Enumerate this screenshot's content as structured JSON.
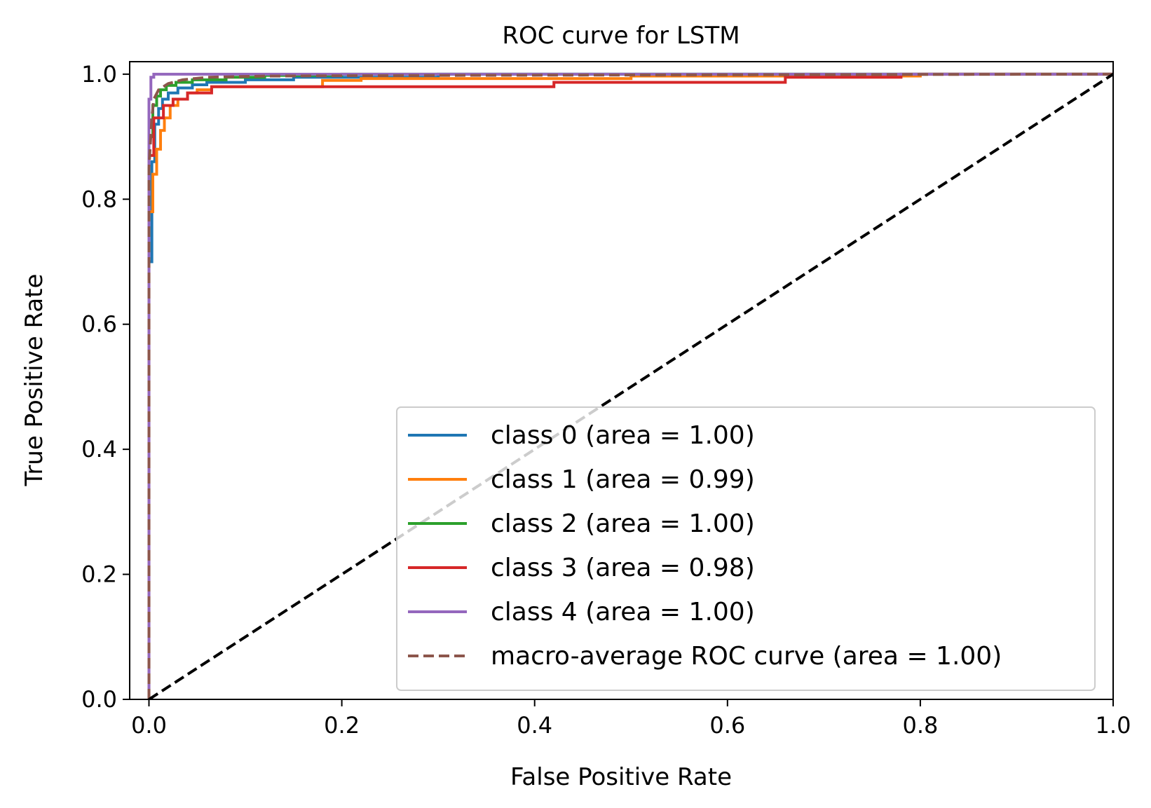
{
  "chart_data": {
    "type": "line",
    "title": "ROC curve for LSTM",
    "xlabel": "False Positive Rate",
    "ylabel": "True Positive Rate",
    "xlim": [
      -0.02,
      1.0
    ],
    "ylim": [
      0.0,
      1.02
    ],
    "xticks": [
      0.0,
      0.2,
      0.4,
      0.6,
      0.8,
      1.0
    ],
    "xtick_labels": [
      "0.0",
      "0.2",
      "0.4",
      "0.6",
      "0.8",
      "1.0"
    ],
    "yticks": [
      0.0,
      0.2,
      0.4,
      0.6,
      0.8,
      1.0
    ],
    "ytick_labels": [
      "0.0",
      "0.2",
      "0.4",
      "0.6",
      "0.8",
      "1.0"
    ],
    "legend_position": "lower-right",
    "series": [
      {
        "name": "class 0",
        "legend_label": "class 0 (area = 1.00)",
        "color": "#1f77b4",
        "dash": "solid",
        "x": [
          0.0,
          0.0,
          0.003,
          0.003,
          0.006,
          0.006,
          0.01,
          0.01,
          0.014,
          0.014,
          0.02,
          0.02,
          0.03,
          0.03,
          0.045,
          0.045,
          0.06,
          0.06,
          0.1,
          0.1,
          0.15,
          0.15,
          0.3,
          0.3,
          1.0
        ],
        "y": [
          0.0,
          0.7,
          0.7,
          0.86,
          0.86,
          0.92,
          0.92,
          0.945,
          0.945,
          0.96,
          0.96,
          0.97,
          0.97,
          0.978,
          0.978,
          0.983,
          0.983,
          0.987,
          0.987,
          0.991,
          0.991,
          0.995,
          0.995,
          1.0,
          1.0
        ]
      },
      {
        "name": "class 1",
        "legend_label": "class 1 (area = 0.99)",
        "color": "#ff7f0e",
        "dash": "solid",
        "x": [
          0.0,
          0.0,
          0.004,
          0.004,
          0.008,
          0.008,
          0.012,
          0.012,
          0.016,
          0.016,
          0.022,
          0.022,
          0.03,
          0.03,
          0.04,
          0.04,
          0.05,
          0.05,
          0.065,
          0.065,
          0.18,
          0.18,
          0.22,
          0.22,
          0.5,
          0.5,
          0.8,
          0.8,
          1.0
        ],
        "y": [
          0.0,
          0.78,
          0.78,
          0.84,
          0.84,
          0.88,
          0.88,
          0.91,
          0.91,
          0.93,
          0.93,
          0.95,
          0.95,
          0.96,
          0.96,
          0.97,
          0.97,
          0.975,
          0.975,
          0.98,
          0.98,
          0.99,
          0.99,
          0.993,
          0.993,
          0.997,
          0.997,
          1.0,
          1.0
        ]
      },
      {
        "name": "class 2",
        "legend_label": "class 2 (area = 1.00)",
        "color": "#2ca02c",
        "dash": "solid",
        "x": [
          0.0,
          0.0,
          0.004,
          0.004,
          0.008,
          0.008,
          0.012,
          0.012,
          0.018,
          0.018,
          0.028,
          0.028,
          0.045,
          0.045,
          0.08,
          0.08,
          0.12,
          0.12,
          0.2,
          0.2,
          1.0
        ],
        "y": [
          0.0,
          0.9,
          0.9,
          0.95,
          0.95,
          0.965,
          0.965,
          0.975,
          0.975,
          0.982,
          0.982,
          0.987,
          0.987,
          0.991,
          0.991,
          0.995,
          0.995,
          0.998,
          0.998,
          1.0,
          1.0
        ]
      },
      {
        "name": "class 3",
        "legend_label": "class 3 (area = 0.98)",
        "color": "#d62728",
        "dash": "solid",
        "x": [
          0.0,
          0.0,
          0.005,
          0.005,
          0.015,
          0.015,
          0.025,
          0.025,
          0.04,
          0.04,
          0.065,
          0.065,
          0.42,
          0.42,
          0.66,
          0.66,
          0.78,
          0.78,
          1.0
        ],
        "y": [
          0.0,
          0.87,
          0.87,
          0.93,
          0.93,
          0.95,
          0.95,
          0.96,
          0.96,
          0.97,
          0.97,
          0.98,
          0.98,
          0.987,
          0.987,
          0.995,
          0.995,
          1.0,
          1.0
        ]
      },
      {
        "name": "class 4",
        "legend_label": "class 4 (area = 1.00)",
        "color": "#9467bd",
        "dash": "solid",
        "x": [
          0.0,
          0.0,
          0.002,
          0.002,
          0.005,
          0.005,
          1.0
        ],
        "y": [
          0.0,
          0.96,
          0.96,
          0.995,
          0.995,
          1.0,
          1.0
        ]
      },
      {
        "name": "macro-average",
        "legend_label": "macro-average ROC curve (area = 1.00)",
        "color": "#8c564b",
        "dash": "dashed",
        "x": [
          0.0,
          0.0,
          0.003,
          0.005,
          0.01,
          0.02,
          0.035,
          0.06,
          0.12,
          0.3,
          0.6,
          1.0
        ],
        "y": [
          0.0,
          0.85,
          0.93,
          0.96,
          0.975,
          0.985,
          0.991,
          0.995,
          0.997,
          0.998,
          0.999,
          1.0
        ]
      },
      {
        "name": "chance",
        "legend_label": "",
        "color": "#000000",
        "dash": "dashed",
        "x": [
          0.0,
          1.0
        ],
        "y": [
          0.0,
          1.0
        ]
      }
    ]
  }
}
